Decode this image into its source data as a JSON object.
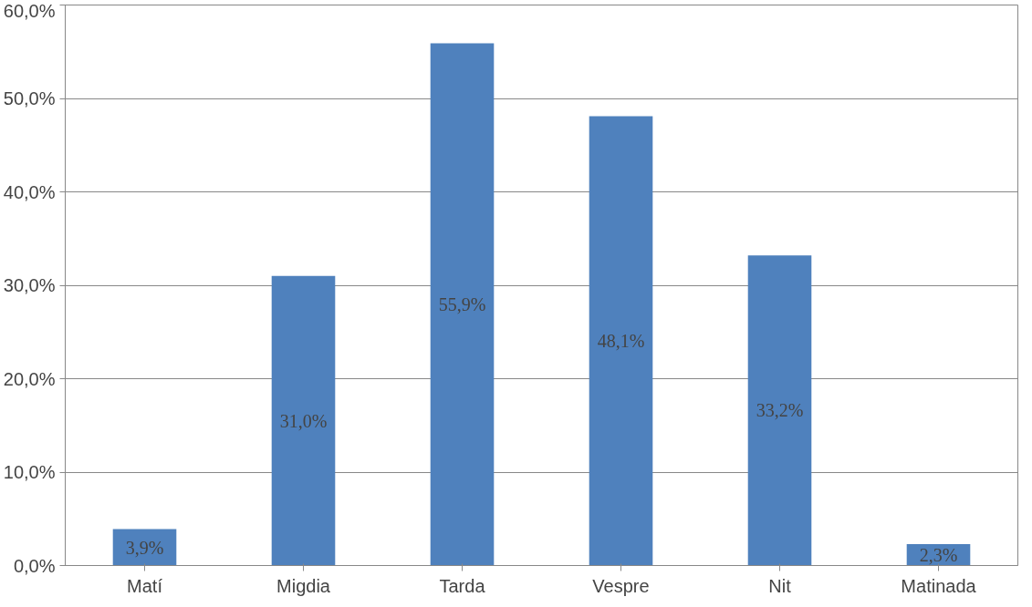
{
  "chart_data": {
    "type": "bar",
    "categories": [
      "Matí",
      "Migdia",
      "Tarda",
      "Vespre",
      "Nit",
      "Matinada"
    ],
    "values": [
      3.9,
      31.0,
      55.9,
      48.1,
      33.2,
      2.3
    ],
    "value_labels": [
      "3,9%",
      "31,0%",
      "55,9%",
      "48,1%",
      "33,2%",
      "2,3%"
    ],
    "color": "#4f81bd",
    "ylim": [
      0,
      60
    ],
    "yticks": [
      {
        "value": 0,
        "label": "0,0%"
      },
      {
        "value": 10,
        "label": "10,0%"
      },
      {
        "value": 20,
        "label": "20,0%"
      },
      {
        "value": 30,
        "label": "30,0%"
      },
      {
        "value": 40,
        "label": "40,0%"
      },
      {
        "value": 50,
        "label": "50,0%"
      },
      {
        "value": 60,
        "label": "60,0%"
      }
    ],
    "grid": "y"
  }
}
